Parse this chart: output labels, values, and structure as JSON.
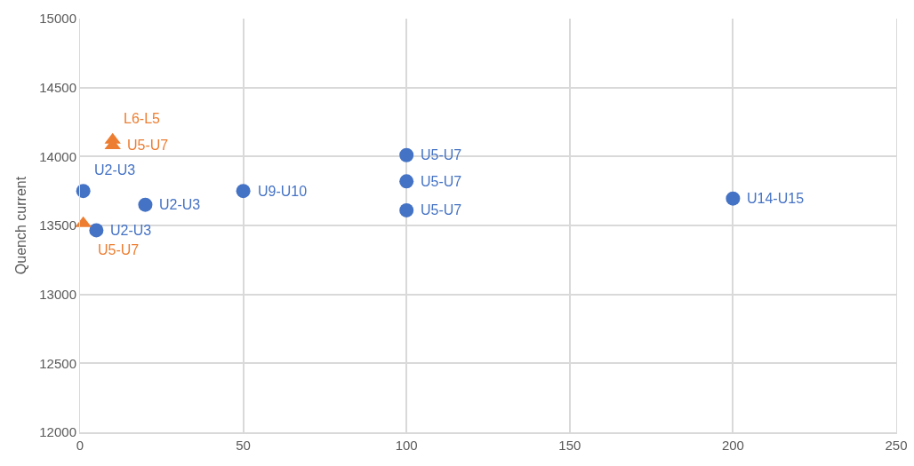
{
  "chart_data": {
    "type": "scatter",
    "ylabel": "Quench current",
    "xlim": [
      0,
      250
    ],
    "xticks": [
      0,
      50,
      100,
      150,
      200,
      250
    ],
    "ylim": [
      12000,
      15000
    ],
    "yticks": [
      12000,
      12500,
      13000,
      13500,
      14000,
      14500,
      15000
    ],
    "grid": true,
    "series": [
      {
        "color": "#4472c4",
        "marker": "circle",
        "x": [
          1,
          5,
          20,
          50,
          100,
          100,
          100,
          200
        ],
        "values": [
          13750,
          13465,
          13650,
          13750,
          14010,
          13820,
          13610,
          13695
        ]
      },
      {
        "color": "#ed7d31",
        "marker": "triangle",
        "x": [
          1,
          10,
          10
        ],
        "values": [
          13515,
          14120,
          14080
        ]
      }
    ],
    "annotations": [
      {
        "text": "U2-U3",
        "x": 1,
        "y": 13750
      },
      {
        "text": "U2-U3",
        "x": 5,
        "y": 13465
      },
      {
        "text": "U2-U3",
        "x": 20,
        "y": 13650
      },
      {
        "text": "U9-U10",
        "x": 50,
        "y": 13750
      },
      {
        "text": "U5-U7",
        "x": 100,
        "y": 14010
      },
      {
        "text": "U5-U7",
        "x": 100,
        "y": 13820
      },
      {
        "text": "U5-U7",
        "x": 100,
        "y": 13610
      },
      {
        "text": "U14-U15",
        "x": 200,
        "y": 13695
      },
      {
        "text": "U5-U7",
        "x": 1,
        "y": 13515
      },
      {
        "text": "U5-U7",
        "x": 10,
        "y": 14080
      },
      {
        "text": "L6-L5",
        "x": 10,
        "y": 14120
      }
    ]
  }
}
